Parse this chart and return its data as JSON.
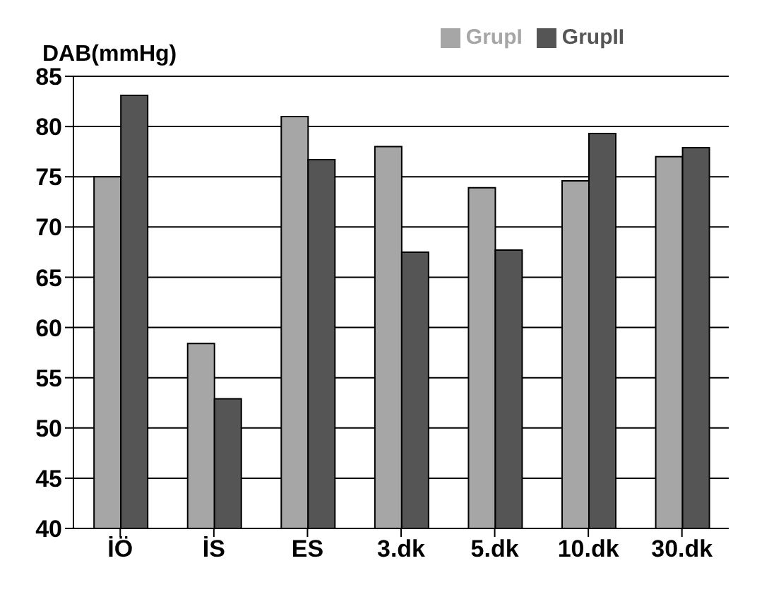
{
  "chart_data": {
    "type": "bar",
    "ylabel": "DAB(mmHg)",
    "categories": [
      "İÖ",
      "İS",
      "ES",
      "3.dk",
      "5.dk",
      "10.dk",
      "30.dk"
    ],
    "series": [
      {
        "name": "GrupI",
        "color": "#a6a6a6",
        "values": [
          75,
          58.4,
          81,
          78,
          73.9,
          74.6,
          77
        ]
      },
      {
        "name": "GrupII",
        "color": "#555555",
        "values": [
          83.1,
          52.9,
          76.7,
          67.5,
          67.7,
          79.3,
          77.9
        ]
      }
    ],
    "ylim": [
      40,
      85
    ],
    "yticks": [
      40,
      45,
      50,
      55,
      60,
      65,
      70,
      75,
      80,
      85
    ],
    "grid": "y",
    "legend": "top"
  }
}
